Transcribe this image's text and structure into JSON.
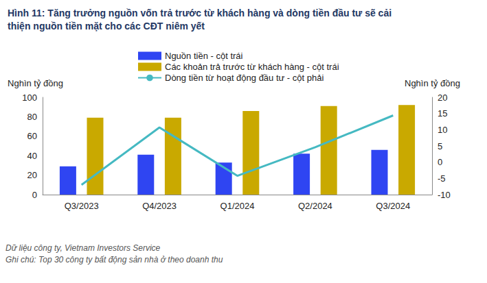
{
  "chart_data": {
    "type": "bar",
    "title": "Hình 11: Tăng trưởng nguồn vốn trả trước từ khách hàng và dòng tiền đầu tư sẽ cải thiện nguồn tiền mặt cho các CĐT niêm yết",
    "ylabel": "Nghìn tỷ đồng",
    "y2label": "Nghìn tỷ đồng",
    "footnotes": [
      "Dữ liệu công ty, Vietnam Investors Service",
      "Ghi chú: Top 30 công ty bất động sản nhà ở theo doanh thu"
    ],
    "categories": [
      "Q3/2023",
      "Q4/2023",
      "Q1/2024",
      "Q2/2024",
      "Q3/2024"
    ],
    "series": [
      {
        "name": "Nguồn tiền - cột trái",
        "type": "bar",
        "color": "#2f45f2",
        "values": [
          29,
          41,
          33,
          42,
          46
        ]
      },
      {
        "name": "Các khoản trả trước từ khách hàng - cột trái",
        "type": "bar",
        "color": "#c9a900",
        "values": [
          79,
          79,
          86,
          91,
          92
        ]
      },
      {
        "name": "Dòng tiền từ hoạt động đầu tư - cột phải",
        "type": "line",
        "axis": "y2",
        "color": "#45b9c2",
        "values": [
          -7,
          10.7,
          -4.2,
          4.6,
          14.4
        ]
      }
    ],
    "ylim": [
      0,
      100
    ],
    "yticks": [
      0,
      20,
      40,
      60,
      80,
      100
    ],
    "y2lim": [
      -10,
      20
    ],
    "y2ticks": [
      -10,
      -5,
      0,
      5,
      10,
      15,
      20
    ],
    "grid": false,
    "legend": "top"
  }
}
